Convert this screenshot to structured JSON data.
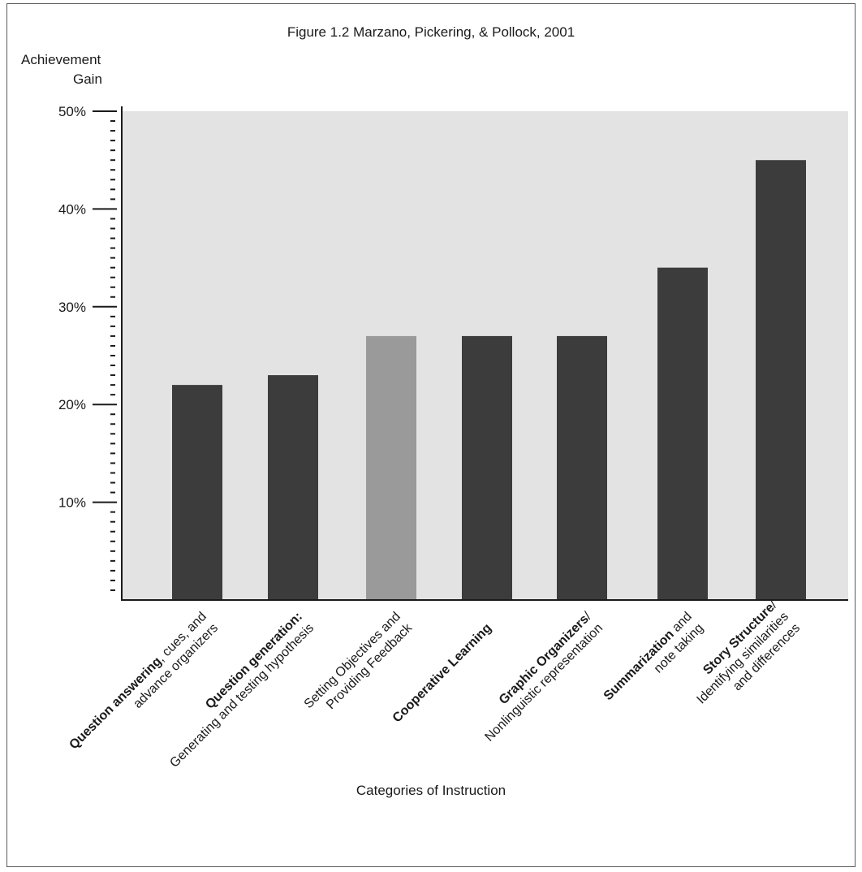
{
  "chart_data": {
    "type": "bar",
    "title": "Figure 1.2 Marzano, Pickering, & Pollock, 2001",
    "ylabel_lines": [
      "Achievement",
      "Gain"
    ],
    "xlabel": "Categories of Instruction",
    "ylim": [
      0,
      50
    ],
    "yticks": [
      10,
      20,
      30,
      40,
      50
    ],
    "ytick_labels": [
      "10%",
      "20%",
      "30%",
      "40%",
      "50%"
    ],
    "categories": [
      {
        "lines": [
          [
            {
              "t": "Question answering",
              "b": true
            },
            {
              "t": ", cues, and",
              "b": false
            }
          ],
          [
            {
              "t": "advance organizers",
              "b": false
            }
          ]
        ]
      },
      {
        "lines": [
          [
            {
              "t": "Question generation:",
              "b": true
            }
          ],
          [
            {
              "t": "Generating and testing hypothesis",
              "b": false
            }
          ]
        ]
      },
      {
        "lines": [
          [
            {
              "t": "Setting Objectives and",
              "b": false
            }
          ],
          [
            {
              "t": "Providing Feedback",
              "b": false
            }
          ]
        ]
      },
      {
        "lines": [
          [
            {
              "t": "Cooperative Learning",
              "b": true
            }
          ]
        ]
      },
      {
        "lines": [
          [
            {
              "t": "Graphic Organizers",
              "b": true
            },
            {
              "t": "/",
              "b": false
            }
          ],
          [
            {
              "t": "Nonlinguistic representation",
              "b": false
            }
          ]
        ]
      },
      {
        "lines": [
          [
            {
              "t": "Summarization",
              "b": true
            },
            {
              "t": " and",
              "b": false
            }
          ],
          [
            {
              "t": "note taking",
              "b": false
            }
          ]
        ]
      },
      {
        "lines": [
          [
            {
              "t": "Story Structure",
              "b": true
            },
            {
              "t": "/",
              "b": false
            }
          ],
          [
            {
              "t": "Identifying similarities",
              "b": false
            }
          ],
          [
            {
              "t": "and differences",
              "b": false
            }
          ]
        ]
      }
    ],
    "values": [
      22,
      23,
      27,
      27,
      27,
      34,
      45
    ],
    "highlight_index": 2,
    "grid": false,
    "colors": {
      "bar": "#3c3c3c",
      "highlight": "#9a9a9a",
      "plot_bg": "#e3e3e3"
    }
  }
}
